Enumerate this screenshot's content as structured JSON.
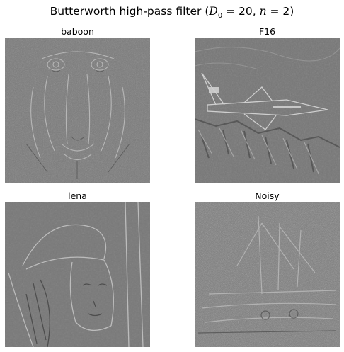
{
  "figure": {
    "title_prefix": "Butterworth high-pass filter (",
    "title_d": "D",
    "title_d_sub": "0",
    "title_mid": " = 20, ",
    "title_n": "n",
    "title_suffix": " = 2)"
  },
  "panels": [
    {
      "title": "baboon",
      "icon": "baboon-face-image"
    },
    {
      "title": "F16",
      "icon": "f16-jet-image"
    },
    {
      "title": "lena",
      "icon": "lena-portrait-image"
    },
    {
      "title": "Noisy",
      "icon": "noisy-boat-image"
    }
  ],
  "colors": {
    "background": "#ffffff",
    "image_base": "#777777",
    "edge_light": "#c8c8c8",
    "edge_dark": "#4a4a4a"
  }
}
